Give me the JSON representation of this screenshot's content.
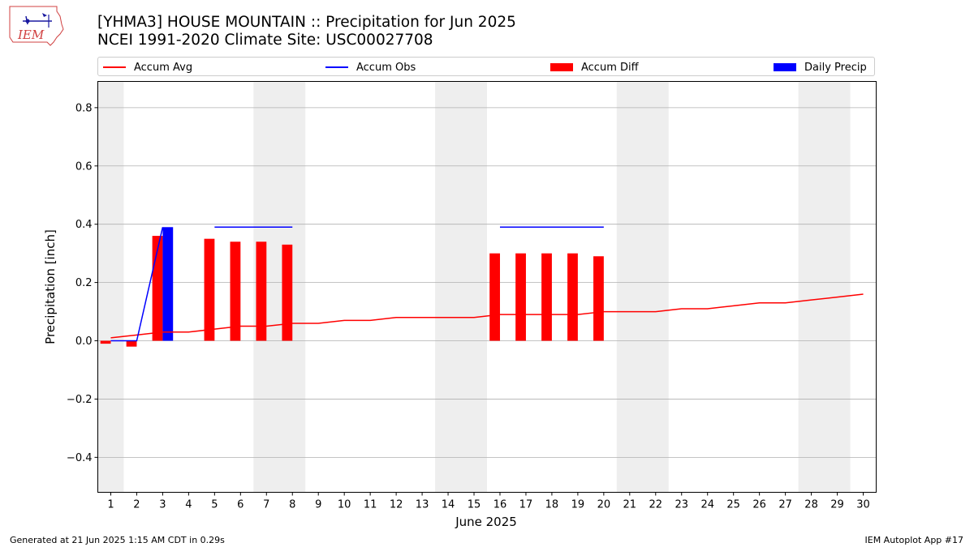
{
  "logo": {
    "text": "IEM"
  },
  "chart_data": {
    "type": "bar",
    "title": "[YHMA3] HOUSE MOUNTAIN :: Precipitation for Jun 2025",
    "subtitle": "NCEI 1991-2020 Climate Site: USC00027708",
    "xlabel": "June 2025",
    "ylabel": "Precipitation [inch]",
    "ylim": [
      -0.52,
      0.89
    ],
    "yticks": [
      -0.4,
      -0.2,
      0.0,
      0.2,
      0.4,
      0.6,
      0.8
    ],
    "ytick_labels": [
      "−0.4",
      "−0.2",
      "0.0",
      "0.2",
      "0.4",
      "0.6",
      "0.8"
    ],
    "xlim": [
      0.5,
      30.5
    ],
    "x": [
      1,
      2,
      3,
      4,
      5,
      6,
      7,
      8,
      9,
      10,
      11,
      12,
      13,
      14,
      15,
      16,
      17,
      18,
      19,
      20,
      21,
      22,
      23,
      24,
      25,
      26,
      27,
      28,
      29,
      30
    ],
    "xtick_labels": [
      "1",
      "2",
      "3",
      "4",
      "5",
      "6",
      "7",
      "8",
      "9",
      "10",
      "11",
      "12",
      "13",
      "14",
      "15",
      "16",
      "17",
      "18",
      "19",
      "20",
      "21",
      "22",
      "23",
      "24",
      "25",
      "26",
      "27",
      "28",
      "29",
      "30"
    ],
    "grid": "horizontal",
    "legend_position": "top",
    "weekend_shading": [
      [
        0.5,
        1.5
      ],
      [
        6.5,
        8.5
      ],
      [
        13.5,
        15.5
      ],
      [
        20.5,
        22.5
      ],
      [
        27.5,
        29.5
      ]
    ],
    "colors": {
      "avg": "#ff0000",
      "obs": "#0000ff",
      "diff": "#ff0000",
      "daily": "#0000ff",
      "shade": "#eeeeee",
      "grid": "#b0b0b0"
    },
    "series": [
      {
        "name": "Accum Avg",
        "kind": "line",
        "x": [
          1,
          2,
          3,
          4,
          5,
          6,
          7,
          8,
          9,
          10,
          11,
          12,
          13,
          14,
          15,
          16,
          17,
          18,
          19,
          20,
          21,
          22,
          23,
          24,
          25,
          26,
          27,
          28,
          29,
          30
        ],
        "values": [
          0.01,
          0.02,
          0.03,
          0.03,
          0.04,
          0.05,
          0.05,
          0.06,
          0.06,
          0.07,
          0.07,
          0.08,
          0.08,
          0.08,
          0.08,
          0.09,
          0.09,
          0.09,
          0.09,
          0.1,
          0.1,
          0.1,
          0.11,
          0.11,
          0.12,
          0.13,
          0.13,
          0.14,
          0.15,
          0.16
        ]
      },
      {
        "name": "Accum Obs",
        "kind": "line",
        "segments": [
          {
            "x": [
              1,
              2,
              3
            ],
            "values": [
              0.0,
              0.0,
              0.39
            ]
          },
          {
            "x": [
              5,
              6,
              7,
              8
            ],
            "values": [
              0.39,
              0.39,
              0.39,
              0.39
            ]
          },
          {
            "x": [
              16,
              17,
              18,
              19,
              20
            ],
            "values": [
              0.39,
              0.39,
              0.39,
              0.39,
              0.39
            ]
          }
        ]
      },
      {
        "name": "Accum Diff",
        "kind": "bar",
        "x": [
          1,
          2,
          3,
          5,
          6,
          7,
          8,
          16,
          17,
          18,
          19,
          20
        ],
        "values": [
          -0.01,
          -0.02,
          0.36,
          0.35,
          0.34,
          0.34,
          0.33,
          0.3,
          0.3,
          0.3,
          0.3,
          0.29
        ]
      },
      {
        "name": "Daily Precip",
        "kind": "bar",
        "x": [
          3
        ],
        "values": [
          0.39
        ]
      }
    ]
  },
  "footer": {
    "generated": "Generated at 21 Jun 2025 1:15 AM CDT in 0.29s",
    "app": "IEM Autoplot App #17"
  }
}
